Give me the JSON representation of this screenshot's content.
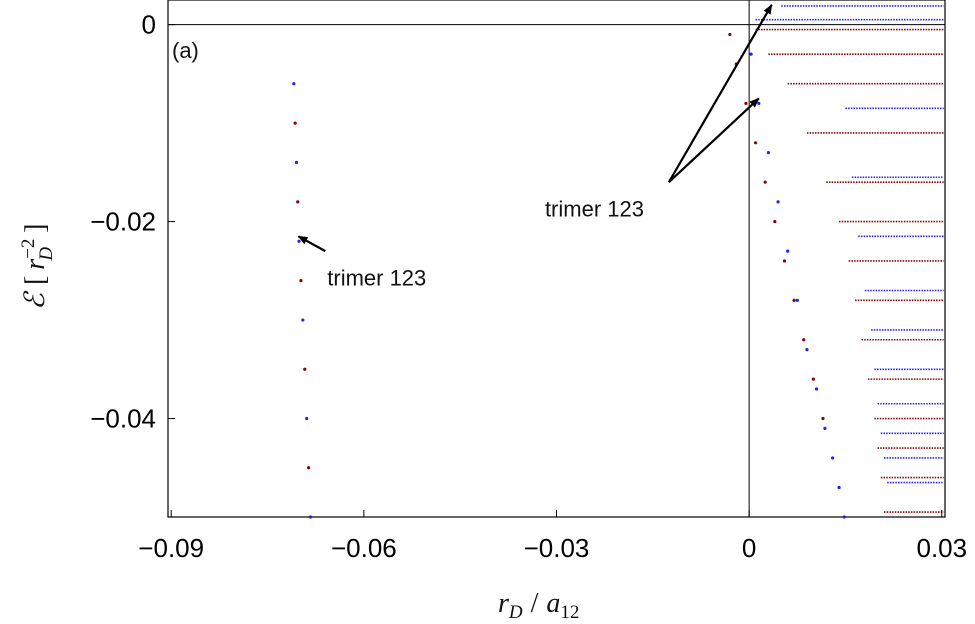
{
  "chart_data": {
    "type": "scatter",
    "panel_label": "(a)",
    "xlabel": {
      "r": "r",
      "sub": "D",
      "sep": "/",
      "a": "a",
      "a_sub": "12"
    },
    "ylabel": {
      "e": "ℰ",
      "open": "[",
      "r": "r",
      "sup": "−2",
      "sub": "D",
      "close": "]"
    },
    "xlim": [
      -0.0905,
      0.0305
    ],
    "ylim": [
      -0.05,
      0.0025
    ],
    "xticks": [
      {
        "value": -0.09,
        "label": "−0.09"
      },
      {
        "value": -0.06,
        "label": "−0.06"
      },
      {
        "value": -0.03,
        "label": "−0.03"
      },
      {
        "value": 0,
        "label": "0"
      },
      {
        "value": 0.03,
        "label": "0.03"
      }
    ],
    "yticks": [
      {
        "value": 0,
        "label": "0"
      },
      {
        "value": -0.02,
        "label": "−0.02"
      },
      {
        "value": -0.04,
        "label": "−0.04"
      }
    ],
    "reference_lines": {
      "x": 0,
      "y": 0
    },
    "colors": {
      "series_blue": "#1f1fff",
      "series_red": "#8b0000",
      "axis": "#000000"
    },
    "trimer_left_branch": {
      "x": [
        -0.0709,
        -0.0707,
        -0.0705,
        -0.0703,
        -0.0701,
        -0.0698,
        -0.0695,
        -0.0692,
        -0.0689,
        -0.0686,
        -0.0683
      ],
      "y": [
        -0.006,
        -0.01,
        -0.014,
        -0.018,
        -0.022,
        -0.026,
        -0.03,
        -0.035,
        -0.04,
        -0.045,
        -0.05
      ]
    },
    "bound_states_near_zero": {
      "blue": {
        "x": [
          0.0003,
          0.0015,
          0.003,
          0.0045,
          0.006,
          0.0075,
          0.009,
          0.0105,
          0.0118,
          0.013,
          0.014,
          0.0148
        ],
        "y": [
          -0.003,
          -0.008,
          -0.013,
          -0.018,
          -0.023,
          -0.028,
          -0.033,
          -0.037,
          -0.041,
          -0.044,
          -0.047,
          -0.05
        ]
      },
      "red": {
        "x": [
          -0.003,
          -0.002,
          -0.0005,
          0.001,
          0.0025,
          0.004,
          0.0055,
          0.007,
          0.0085,
          0.01,
          0.0115
        ],
        "y": [
          -0.001,
          -0.004,
          -0.008,
          -0.012,
          -0.016,
          -0.02,
          -0.024,
          -0.028,
          -0.032,
          -0.036,
          -0.04
        ]
      }
    },
    "continuum": {
      "x_end": 0.0303,
      "blue_lines": [
        {
          "x_start": 0.001,
          "y": 0.0005
        },
        {
          "x_start": 0.005,
          "y": 0.0019
        },
        {
          "x_start": 0.015,
          "y": -0.0085
        },
        {
          "x_start": 0.016,
          "y": -0.0155
        },
        {
          "x_start": 0.017,
          "y": -0.0215
        },
        {
          "x_start": 0.018,
          "y": -0.027
        },
        {
          "x_start": 0.019,
          "y": -0.031
        },
        {
          "x_start": 0.0195,
          "y": -0.035
        },
        {
          "x_start": 0.02,
          "y": -0.0385
        },
        {
          "x_start": 0.0205,
          "y": -0.0415
        },
        {
          "x_start": 0.021,
          "y": -0.044
        },
        {
          "x_start": 0.0215,
          "y": -0.0465
        }
      ],
      "red_lines": [
        {
          "x_start": 0.001,
          "y": -0.0005
        },
        {
          "x_start": 0.003,
          "y": -0.003
        },
        {
          "x_start": 0.006,
          "y": -0.006
        },
        {
          "x_start": 0.009,
          "y": -0.011
        },
        {
          "x_start": 0.012,
          "y": -0.016
        },
        {
          "x_start": 0.014,
          "y": -0.02
        },
        {
          "x_start": 0.0155,
          "y": -0.024
        },
        {
          "x_start": 0.0165,
          "y": -0.028
        },
        {
          "x_start": 0.0175,
          "y": -0.032
        },
        {
          "x_start": 0.0185,
          "y": -0.036
        },
        {
          "x_start": 0.0195,
          "y": -0.04
        },
        {
          "x_start": 0.02,
          "y": -0.043
        },
        {
          "x_start": 0.0205,
          "y": -0.046
        },
        {
          "x_start": 0.021,
          "y": -0.0495
        }
      ]
    },
    "annotations": [
      {
        "text": "trimer 123",
        "text_at": {
          "x": -0.0657,
          "y": -0.0265
        },
        "arrows": [
          {
            "from": {
              "x": -0.066,
              "y": -0.023
            },
            "to": {
              "x": -0.0702,
              "y": -0.0215
            }
          }
        ]
      },
      {
        "text": "trimer 123",
        "text_at": {
          "x": -0.0318,
          "y": -0.0195
        },
        "arrows": [
          {
            "from": {
              "x": -0.0125,
              "y": -0.016
            },
            "to": {
              "x": 0.0035,
              "y": 0.002
            }
          },
          {
            "from": {
              "x": -0.0125,
              "y": -0.016
            },
            "to": {
              "x": 0.0015,
              "y": -0.0075
            }
          }
        ]
      }
    ]
  }
}
